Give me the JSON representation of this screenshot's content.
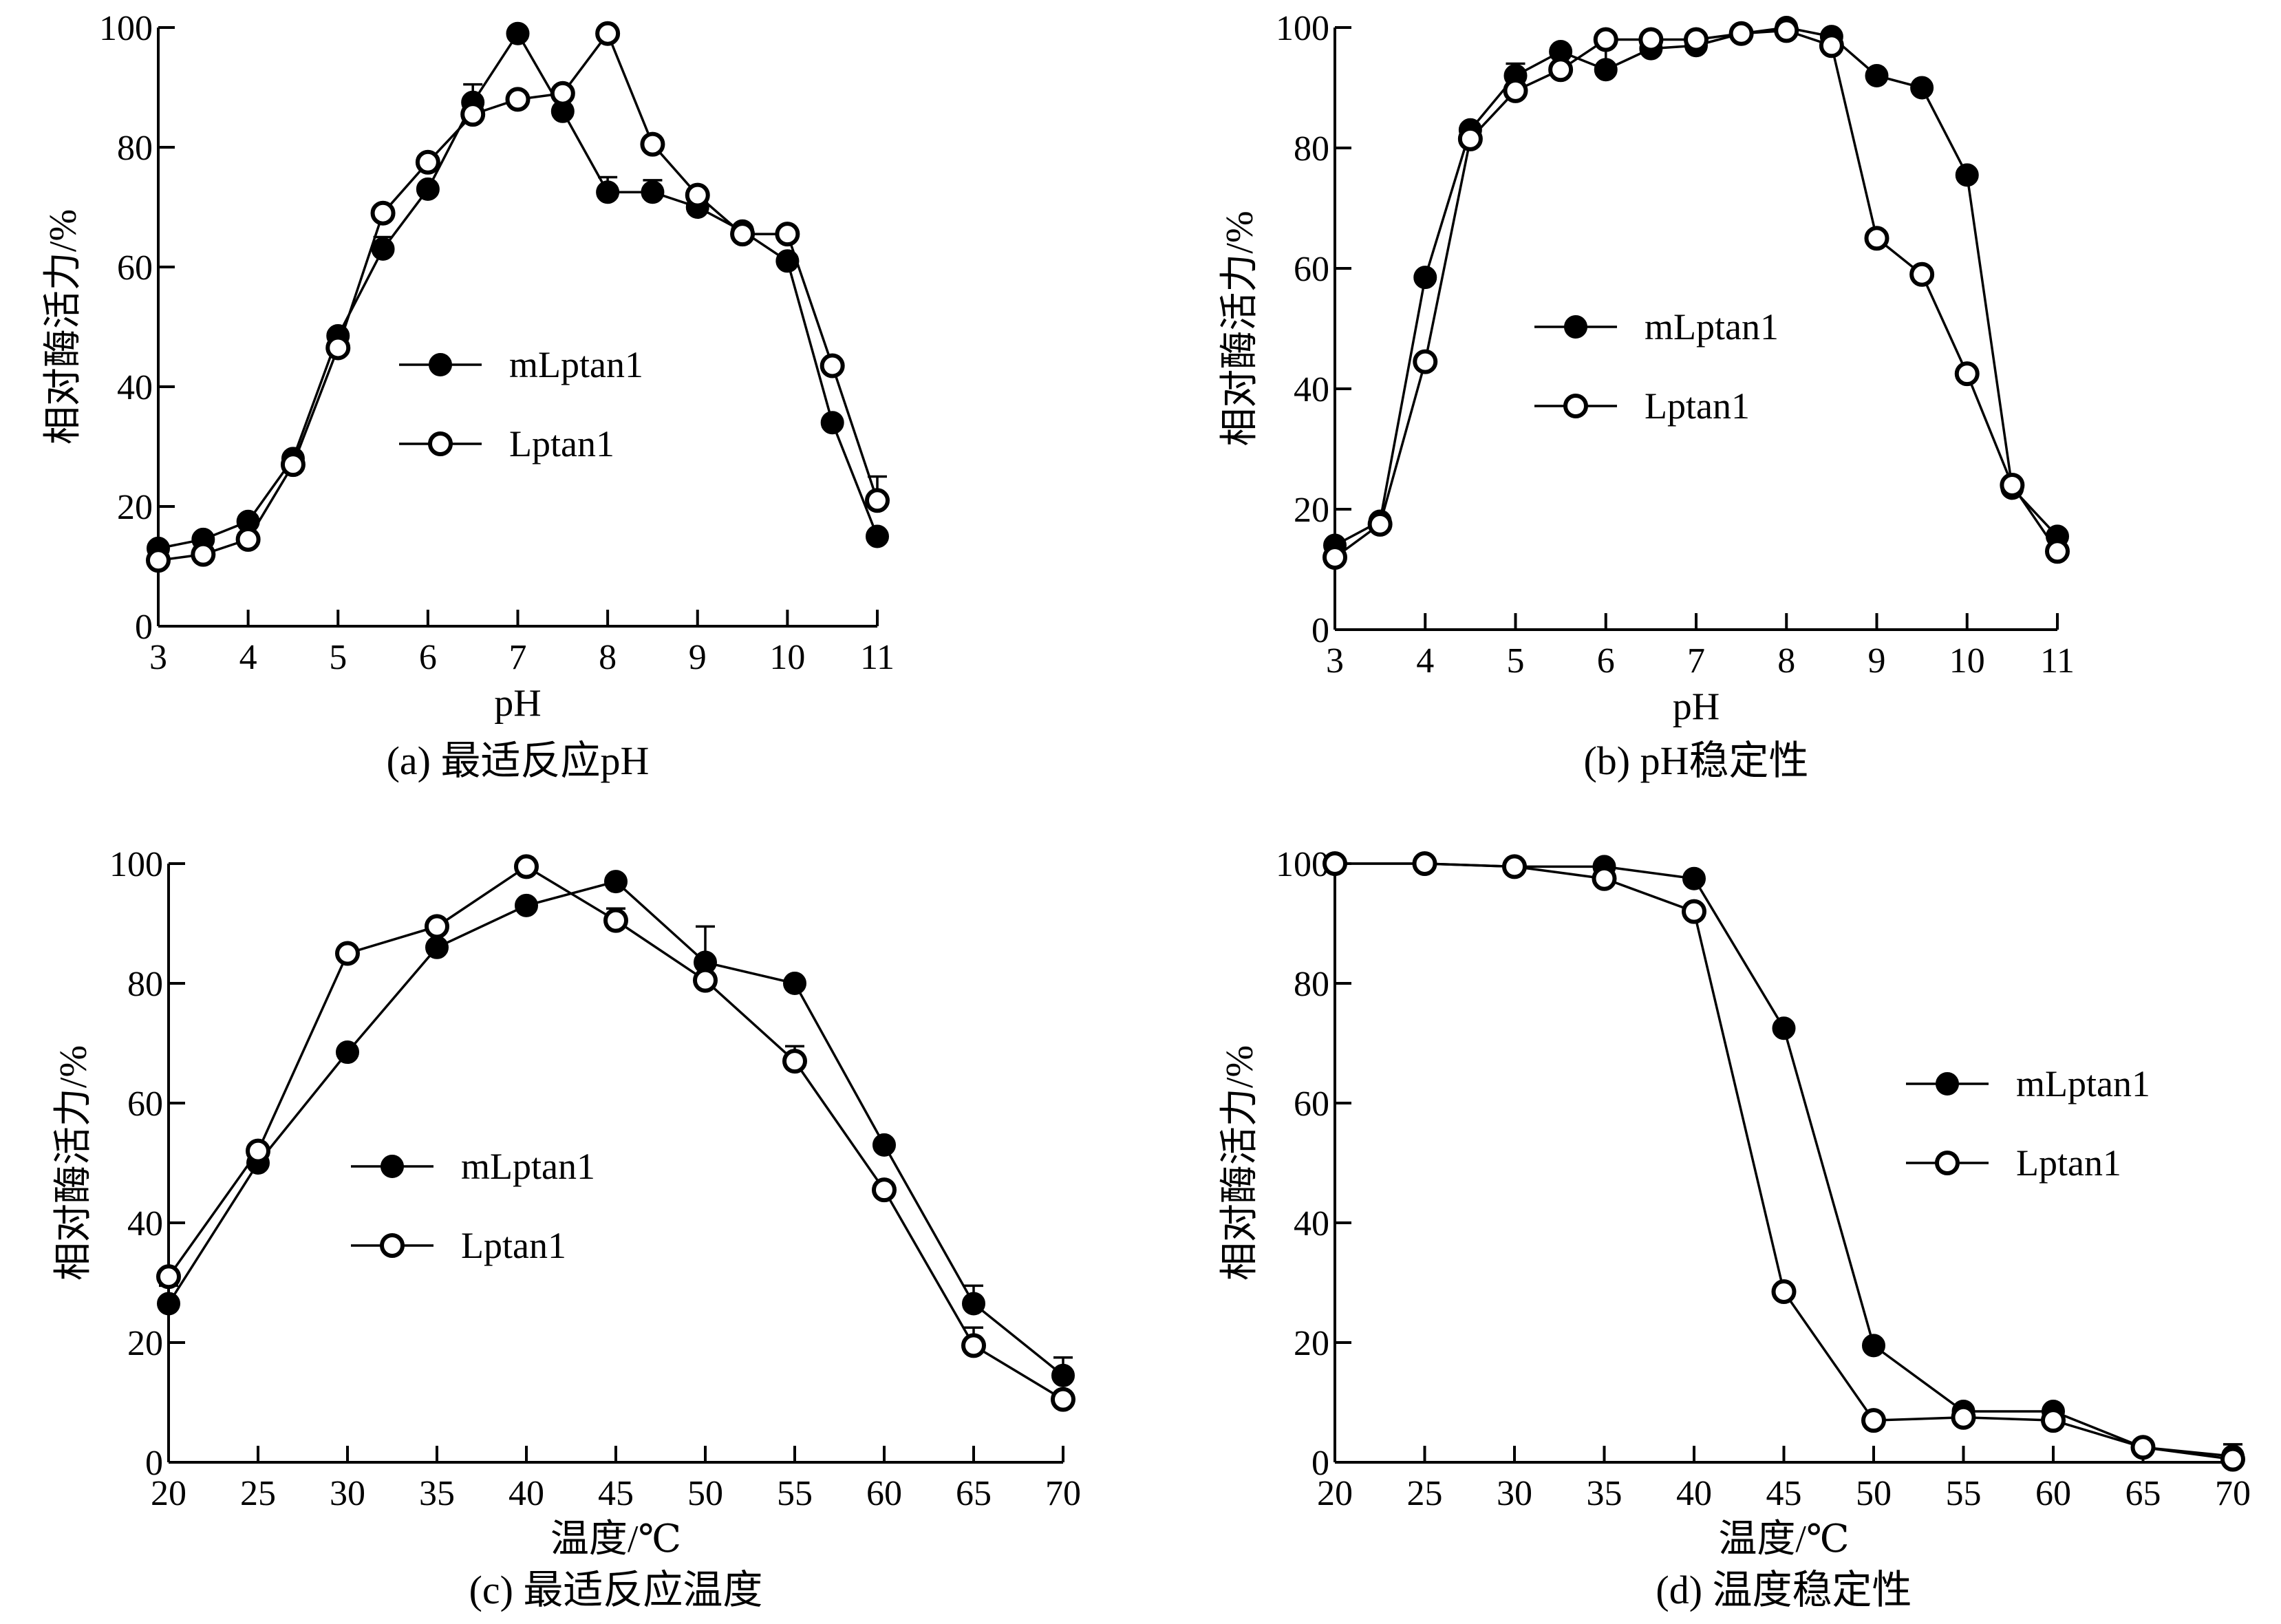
{
  "colors": {
    "ink": "#000000",
    "background": "#ffffff",
    "open_fill": "#ffffff"
  },
  "chart_data": [
    {
      "type": "line",
      "caption": "(a) 最适反应pH",
      "xlabel": "pH",
      "ylabel": "相对酶活力/%",
      "xlim": [
        3,
        11
      ],
      "ylim": [
        0,
        100
      ],
      "xticks": [
        3,
        4,
        5,
        6,
        7,
        8,
        9,
        10,
        11
      ],
      "yticks": [
        0,
        20,
        40,
        60,
        80,
        100
      ],
      "legend_position": "center",
      "series": [
        {
          "name": "mLptan1",
          "marker": "filled-circle",
          "x": [
            3,
            3.5,
            4,
            4.5,
            5,
            5.5,
            6,
            6.5,
            7,
            7.5,
            8,
            8.5,
            9,
            9.5,
            10,
            10.5,
            11
          ],
          "values": [
            13,
            14.5,
            17.5,
            28,
            48.5,
            63,
            73,
            87.5,
            99,
            86,
            72.5,
            72.5,
            70,
            66,
            61,
            34,
            15
          ],
          "error": [
            0,
            0,
            0,
            0,
            0,
            2,
            0,
            3,
            0,
            0,
            2.5,
            2,
            0,
            0,
            0,
            0,
            0
          ]
        },
        {
          "name": "Lptan1",
          "marker": "open-circle",
          "x": [
            3,
            3.5,
            4,
            4.5,
            5,
            5.5,
            6,
            6.5,
            7,
            7.5,
            8,
            8.5,
            9,
            9.5,
            10,
            10.5,
            11
          ],
          "values": [
            11,
            12,
            14.5,
            27,
            46.5,
            69,
            77.5,
            85.5,
            88,
            89,
            99,
            80.5,
            72,
            65.5,
            65.5,
            43.5,
            21
          ],
          "error": [
            0,
            0,
            0,
            0,
            0,
            0,
            0,
            0,
            0,
            0,
            0,
            0,
            0,
            0,
            0,
            0,
            4
          ]
        }
      ]
    },
    {
      "type": "line",
      "caption": "(b) pH稳定性",
      "xlabel": "pH",
      "ylabel": "相对酶活力/%",
      "xlim": [
        3,
        11
      ],
      "ylim": [
        0,
        100
      ],
      "xticks": [
        3,
        4,
        5,
        6,
        7,
        8,
        9,
        10,
        11
      ],
      "yticks": [
        0,
        20,
        40,
        60,
        80,
        100
      ],
      "legend_position": "center-right",
      "series": [
        {
          "name": "mLptan1",
          "marker": "filled-circle",
          "x": [
            3,
            3.5,
            4,
            4.5,
            5,
            5.5,
            6,
            6.5,
            7,
            7.5,
            8,
            8.5,
            9,
            9.5,
            10,
            10.5,
            11
          ],
          "values": [
            14,
            18,
            58.5,
            83,
            92,
            96,
            93,
            96.5,
            97,
            99,
            100,
            98.5,
            92,
            90,
            75.5,
            23.5,
            15.5
          ],
          "error": [
            0,
            0,
            0,
            0,
            2,
            0,
            4,
            0,
            0,
            0,
            0,
            0,
            0,
            0,
            0,
            0,
            0
          ]
        },
        {
          "name": "Lptan1",
          "marker": "open-circle",
          "x": [
            3,
            3.5,
            4,
            4.5,
            5,
            5.5,
            6,
            6.5,
            7,
            7.5,
            8,
            8.5,
            9,
            9.5,
            10,
            10.5,
            11
          ],
          "values": [
            12,
            17.5,
            44.5,
            81.5,
            89.5,
            93,
            98,
            98,
            98,
            99,
            99.5,
            97,
            65,
            59,
            42.5,
            24,
            13
          ],
          "error": [
            0,
            0,
            0,
            0,
            0,
            0,
            0,
            0,
            0,
            0,
            0,
            0,
            0,
            0,
            0,
            0,
            0
          ]
        }
      ]
    },
    {
      "type": "line",
      "caption": "(c) 最适反应温度",
      "xlabel": "温度/℃",
      "ylabel": "相对酶活力/%",
      "xlim": [
        20,
        70
      ],
      "ylim": [
        0,
        100
      ],
      "xticks": [
        20,
        25,
        30,
        35,
        40,
        45,
        50,
        55,
        60,
        65,
        70
      ],
      "yticks": [
        0,
        20,
        40,
        60,
        80,
        100
      ],
      "legend_position": "center",
      "series": [
        {
          "name": "mLptan1",
          "marker": "filled-circle",
          "x": [
            20,
            25,
            30,
            35,
            40,
            45,
            50,
            55,
            60,
            65,
            70
          ],
          "values": [
            26.5,
            50,
            68.5,
            86,
            93,
            97,
            83.5,
            80,
            53,
            26.5,
            14.5
          ],
          "error": [
            3,
            0,
            0,
            0,
            0,
            0,
            6,
            0,
            0,
            3,
            3
          ]
        },
        {
          "name": "Lptan1",
          "marker": "open-circle",
          "x": [
            20,
            25,
            30,
            35,
            40,
            45,
            50,
            55,
            60,
            65,
            70
          ],
          "values": [
            31,
            52,
            85,
            89.5,
            99.5,
            90.5,
            80.5,
            67,
            45.5,
            19.5,
            10.5
          ],
          "error": [
            0,
            0,
            0,
            0,
            0,
            2,
            3,
            2.5,
            0,
            3,
            0
          ]
        }
      ]
    },
    {
      "type": "line",
      "caption": "(d) 温度稳定性",
      "xlabel": "温度/℃",
      "ylabel": "相对酶活力/%",
      "xlim": [
        20,
        70
      ],
      "ylim": [
        0,
        100
      ],
      "xticks": [
        20,
        25,
        30,
        35,
        40,
        45,
        50,
        55,
        60,
        65,
        70
      ],
      "yticks": [
        0,
        20,
        40,
        60,
        80,
        100
      ],
      "legend_position": "top-right",
      "series": [
        {
          "name": "mLptan1",
          "marker": "filled-circle",
          "x": [
            20,
            25,
            30,
            35,
            40,
            45,
            50,
            55,
            60,
            65,
            70
          ],
          "values": [
            100,
            100,
            99.5,
            99.5,
            97.5,
            72.5,
            19.5,
            8.5,
            8.5,
            2.5,
            1
          ],
          "error": [
            0,
            0,
            0,
            0,
            0,
            0,
            0,
            0,
            0,
            0,
            2
          ]
        },
        {
          "name": "Lptan1",
          "marker": "open-circle",
          "x": [
            20,
            25,
            30,
            35,
            40,
            45,
            50,
            55,
            60,
            65,
            70
          ],
          "values": [
            100,
            100,
            99.5,
            97.5,
            92,
            28.5,
            7,
            7.5,
            7,
            2.5,
            0.5
          ],
          "error": [
            0,
            0,
            0,
            0,
            0,
            0,
            0,
            0,
            0,
            0,
            0
          ]
        }
      ]
    }
  ]
}
